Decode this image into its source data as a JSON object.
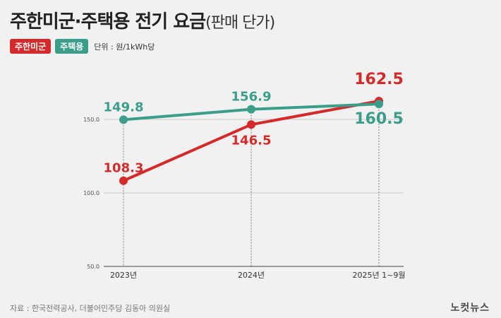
{
  "header": {
    "title": "주한미군·주택용 전기 요금",
    "subtitle": "(판매 단가)"
  },
  "legend": {
    "unit": "단위 : 원/1kWh당"
  },
  "chart_data": {
    "type": "line",
    "categories": [
      "2023년",
      "2024년",
      "2025년 1~9월"
    ],
    "series": [
      {
        "name": "주한미군",
        "values": [
          108.3,
          146.5,
          162.5
        ],
        "labels": [
          "108.3",
          "146.5",
          "162.5"
        ],
        "color": "#d42a2a"
      },
      {
        "name": "주택용",
        "values": [
          149.8,
          156.9,
          160.5
        ],
        "labels": [
          "149.8",
          "156.9",
          "160.5"
        ],
        "color": "#3a9e8a"
      }
    ],
    "ylim": [
      50,
      180
    ],
    "yticks": [
      "50.0",
      "100.0",
      "150.0"
    ],
    "grid": true
  },
  "footer": {
    "source": "자료 : 한국전력공사, 더불어민주당 김동아 의원실",
    "brand": "노컷뉴스"
  }
}
